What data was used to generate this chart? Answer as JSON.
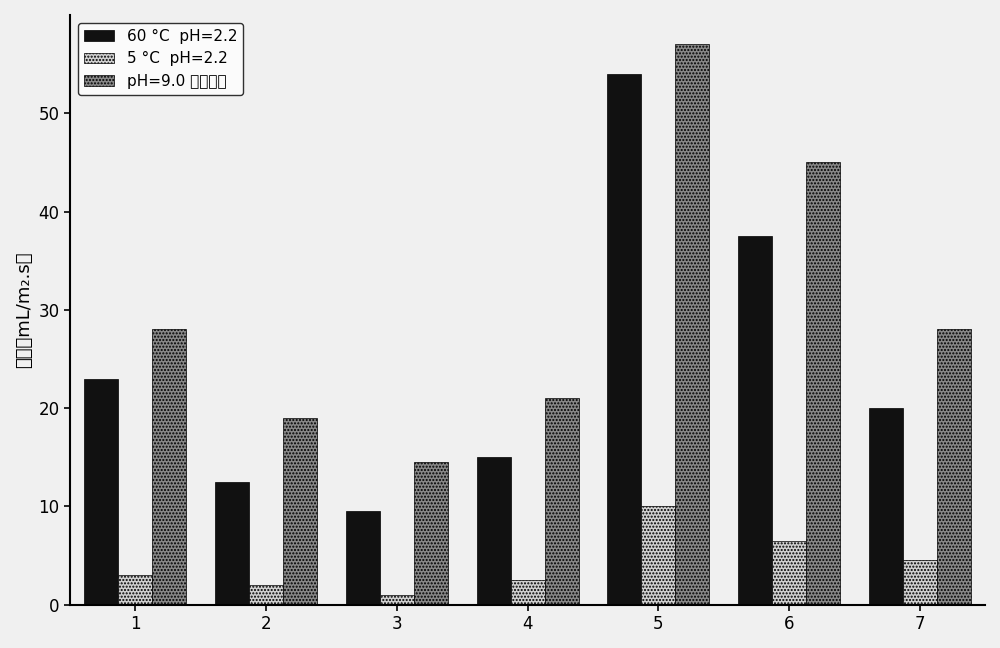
{
  "categories": [
    1,
    2,
    3,
    4,
    5,
    6,
    7
  ],
  "series": [
    {
      "label": "60 °C  pH=2.2",
      "color": "#111111",
      "hatch": null,
      "values": [
        23,
        12.5,
        9.5,
        15,
        54,
        37.5,
        20
      ]
    },
    {
      "label": "5 °C  pH=2.2",
      "color": "#d0d0d0",
      "hatch": ".....",
      "values": [
        3,
        2,
        1,
        2.5,
        10,
        6.5,
        4.5
      ]
    },
    {
      "label": "pH=9.0 任意温度",
      "color": "#888888",
      "hatch": ".....",
      "values": [
        28,
        19,
        14.5,
        21,
        57,
        45,
        28
      ]
    }
  ],
  "ylabel": "通量（mL/m₂.s）",
  "ylim": [
    0,
    60
  ],
  "yticks": [
    0,
    10,
    20,
    30,
    40,
    50
  ],
  "bar_width": 0.26,
  "background_color": "#f0f0f0",
  "legend_loc": "upper left",
  "axis_fontsize": 13,
  "tick_fontsize": 12
}
